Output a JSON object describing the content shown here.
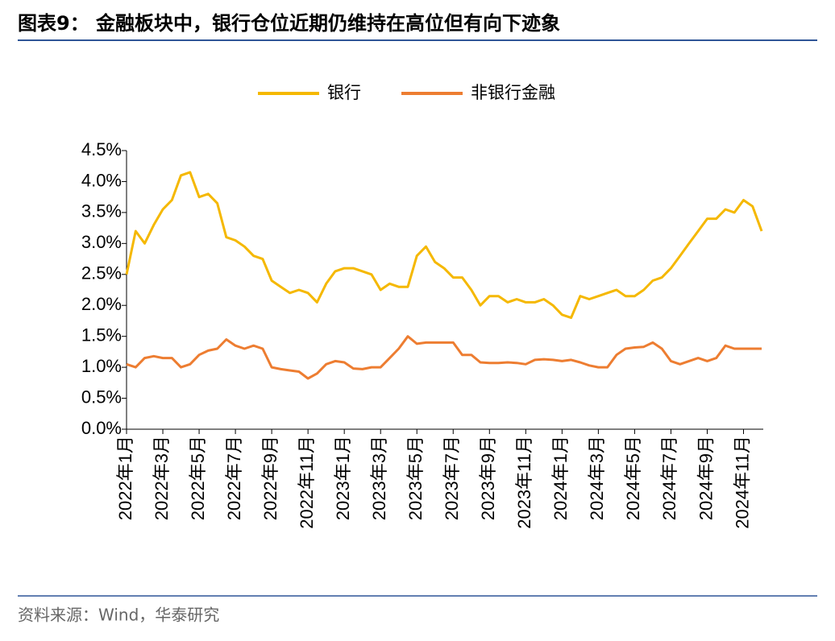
{
  "header": {
    "title": "图表9：  金融板块中，银行仓位近期仍维持在高位但有向下迹象"
  },
  "chart_data": {
    "type": "line",
    "categories": [
      "2022年1月",
      null,
      null,
      null,
      "2022年3月",
      null,
      null,
      null,
      "2022年5月",
      null,
      null,
      null,
      "2022年7月",
      null,
      null,
      null,
      "2022年9月",
      null,
      null,
      null,
      "2022年11月",
      null,
      null,
      null,
      "2023年1月",
      null,
      null,
      null,
      "2023年3月",
      null,
      null,
      null,
      "2023年5月",
      null,
      null,
      null,
      "2023年7月",
      null,
      null,
      null,
      "2023年9月",
      null,
      null,
      null,
      "2023年11月",
      null,
      null,
      null,
      "2024年1月",
      null,
      null,
      null,
      "2024年3月",
      null,
      null,
      null,
      "2024年5月",
      null,
      null,
      null,
      "2024年7月",
      null,
      null,
      null,
      "2024年9月",
      null,
      null,
      null,
      "2024年11月",
      null,
      null
    ],
    "series": [
      {
        "name": "银行",
        "color": "#f5b800",
        "values": [
          2.5,
          3.2,
          3.0,
          3.3,
          3.55,
          3.7,
          4.1,
          4.15,
          3.75,
          3.8,
          3.65,
          3.1,
          3.05,
          2.95,
          2.8,
          2.75,
          2.4,
          2.3,
          2.2,
          2.25,
          2.2,
          2.05,
          2.35,
          2.55,
          2.6,
          2.6,
          2.55,
          2.5,
          2.25,
          2.35,
          2.3,
          2.3,
          2.8,
          2.95,
          2.7,
          2.6,
          2.45,
          2.45,
          2.25,
          2.0,
          2.15,
          2.15,
          2.05,
          2.1,
          2.05,
          2.05,
          2.1,
          2.0,
          1.85,
          1.8,
          2.15,
          2.1,
          2.15,
          2.2,
          2.25,
          2.15,
          2.15,
          2.25,
          2.4,
          2.45,
          2.6,
          2.8,
          3.0,
          3.2,
          3.4,
          3.4,
          3.55,
          3.5,
          3.7,
          3.6,
          3.2
        ]
      },
      {
        "name": "非银行金融",
        "color": "#ed7d31",
        "values": [
          1.05,
          1.0,
          1.15,
          1.18,
          1.15,
          1.15,
          1.0,
          1.05,
          1.2,
          1.27,
          1.3,
          1.45,
          1.35,
          1.3,
          1.35,
          1.3,
          1.0,
          0.97,
          0.95,
          0.93,
          0.82,
          0.9,
          1.05,
          1.1,
          1.08,
          0.98,
          0.97,
          1.0,
          1.0,
          1.15,
          1.3,
          1.5,
          1.38,
          1.4,
          1.4,
          1.4,
          1.4,
          1.2,
          1.2,
          1.08,
          1.07,
          1.07,
          1.08,
          1.07,
          1.05,
          1.12,
          1.13,
          1.12,
          1.1,
          1.12,
          1.08,
          1.03,
          1.0,
          1.0,
          1.2,
          1.3,
          1.32,
          1.33,
          1.4,
          1.3,
          1.1,
          1.05,
          1.1,
          1.15,
          1.1,
          1.15,
          1.35,
          1.3,
          1.3,
          1.3,
          1.3
        ]
      }
    ],
    "ylim": [
      0,
      4.5
    ],
    "yticks": [
      {
        "value": 0,
        "label": "0.0%"
      },
      {
        "value": 0.5,
        "label": "0.5%"
      },
      {
        "value": 1,
        "label": "1.0%"
      },
      {
        "value": 1.5,
        "label": "1.5%"
      },
      {
        "value": 2,
        "label": "2.0%"
      },
      {
        "value": 2.5,
        "label": "2.5%"
      },
      {
        "value": 3,
        "label": "3.0%"
      },
      {
        "value": 3.5,
        "label": "3.5%"
      },
      {
        "value": 4,
        "label": "4.0%"
      },
      {
        "value": 4.5,
        "label": "4.5%"
      }
    ],
    "legend": "top"
  },
  "footer": {
    "source": "资料来源：Wind，华泰研究"
  }
}
